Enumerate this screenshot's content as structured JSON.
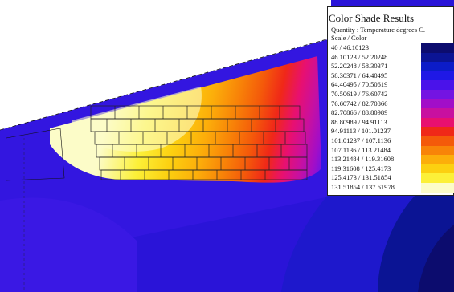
{
  "legend": {
    "title": "Color Shade Results",
    "quantity": "Quantity : Temperature degrees C.",
    "scale": "Scale / Color",
    "rows": [
      "40  /  46.10123",
      "46.10123  /  52.20248",
      "52.20248  /  58.30371",
      "58.30371  /  64.40495",
      "64.40495  /  70.50619",
      "70.50619  /  76.60742",
      "76.60742  /  82.70866",
      "82.70866  /  88.80989",
      "88.80989  /  94.91113",
      "94.91113  /  101.01237",
      "101.01237  /  107.1136",
      "107.1136  /  113.21484",
      "113.21484  /  119.31608",
      "119.31608  /  125.4173",
      "125.4173  /  131.51854",
      "131.51854  /  137.61978"
    ],
    "colors": [
      "#0c0c6e",
      "#0b1494",
      "#0c1cc8",
      "#1f18e6",
      "#4a12ea",
      "#7414e2",
      "#a20ec8",
      "#c810a0",
      "#e81070",
      "#f02818",
      "#f45a0a",
      "#f88408",
      "#fcae0a",
      "#fcd010",
      "#fcf038",
      "#fcfcc8"
    ]
  },
  "chart_data": {
    "type": "heatmap",
    "title": "Color Shade Results",
    "quantity": "Temperature",
    "unit": "degrees C.",
    "scale_min": 40,
    "scale_max": 137.61978,
    "bins": [
      [
        40,
        46.10123
      ],
      [
        46.10123,
        52.20248
      ],
      [
        52.20248,
        58.30371
      ],
      [
        58.30371,
        64.40495
      ],
      [
        64.40495,
        70.50619
      ],
      [
        70.50619,
        76.60742
      ],
      [
        76.60742,
        82.70866
      ],
      [
        82.70866,
        88.80989
      ],
      [
        88.80989,
        94.91113
      ],
      [
        94.91113,
        101.01237
      ],
      [
        101.01237,
        107.1136
      ],
      [
        107.1136,
        113.21484
      ],
      [
        113.21484,
        119.31608
      ],
      [
        119.31608,
        125.4173
      ],
      [
        125.4173,
        131.51854
      ],
      [
        131.51854,
        137.61978
      ]
    ]
  }
}
